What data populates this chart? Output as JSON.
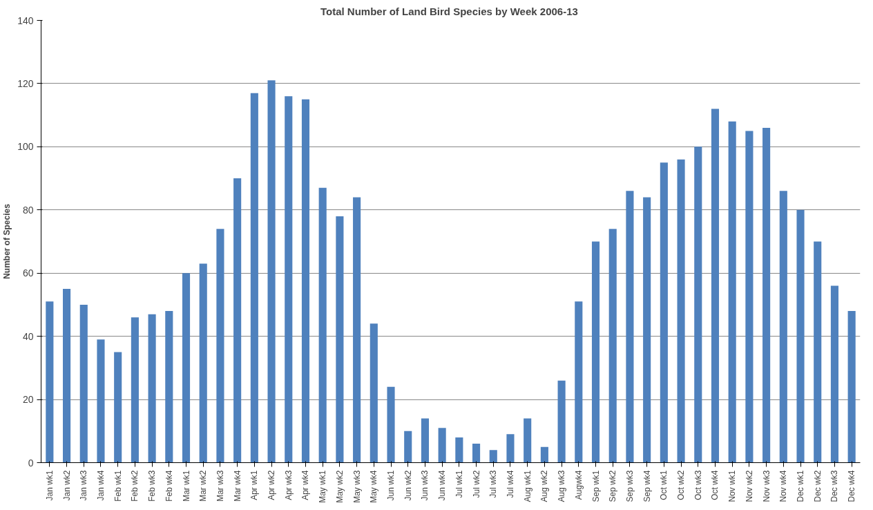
{
  "chart_data": {
    "type": "bar",
    "title": "Total Number of Land Bird  Species by Week 2006-13",
    "ylabel": "Number of Species",
    "categories": [
      "Jan wk1",
      "Jan wk2",
      "Jan wk3",
      "Jan wk4",
      "Feb wk1",
      "Feb wk2",
      "Feb wk3",
      "Feb wk4",
      "Mar wk1",
      "Mar wk2",
      "Mar wk3",
      "Mar wk4",
      "Apr wk1",
      "Apr wk2",
      "Apr wk3",
      "Apr wk4",
      "May wk1",
      "May wk2",
      "May wk3",
      "May wk4",
      "Jun wk1",
      "Jun wk2",
      "Jun wk3",
      "Jun wk4",
      "Jul wk1",
      "Jul wk2",
      "Jul wk3",
      "Jul wk4",
      "Aug wk1",
      "Aug wk2",
      "Aug wk3",
      "Augwk4",
      "Sep wk1",
      "Sep wk2",
      "Sep wk3",
      "Sep wk4",
      "Oct wk1",
      "Oct wk2",
      "Oct wk3",
      "Oct wk4",
      "Nov wk1",
      "Nov wk2",
      "Nov wk3",
      "Nov wk4",
      "Dec wk1",
      "Dec wk2",
      "Dec wk3",
      "Dec wk4"
    ],
    "values": [
      51,
      55,
      50,
      39,
      35,
      46,
      47,
      48,
      60,
      63,
      74,
      90,
      117,
      121,
      116,
      115,
      87,
      78,
      84,
      44,
      24,
      10,
      14,
      11,
      8,
      6,
      4,
      9,
      14,
      5,
      26,
      51,
      70,
      74,
      86,
      84,
      95,
      96,
      100,
      112,
      108,
      105,
      106,
      86,
      80,
      70,
      56,
      48
    ],
    "color": "#4f81bd",
    "ylim": [
      0,
      140
    ],
    "yticks": [
      0,
      20,
      40,
      60,
      80,
      100,
      120,
      140
    ],
    "grid": "y"
  }
}
